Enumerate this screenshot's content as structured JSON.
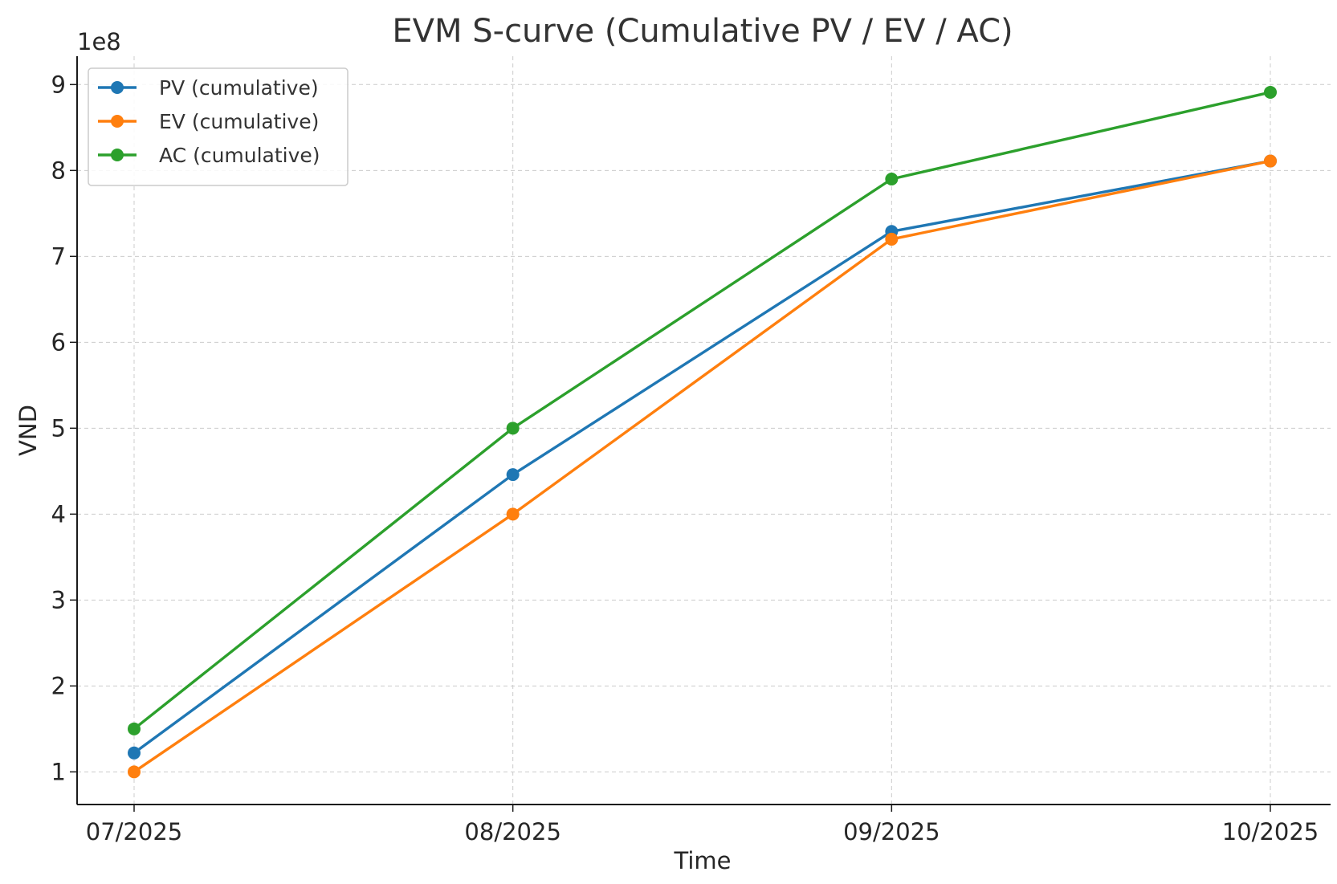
{
  "chart_data": {
    "type": "line",
    "title": "EVM S-curve (Cumulative PV / EV / AC)",
    "xlabel": "Time",
    "ylabel": "VND",
    "y_offset_label": "1e8",
    "categories": [
      "07/2025",
      "08/2025",
      "09/2025",
      "10/2025"
    ],
    "y_ticks": [
      1,
      2,
      3,
      4,
      5,
      6,
      7,
      8,
      9
    ],
    "ylim": [
      0.62,
      9.33
    ],
    "grid": true,
    "legend_position": "top-left",
    "series": [
      {
        "name": "PV (cumulative)",
        "color": "#1f77b4",
        "values": [
          1.22,
          4.46,
          7.29,
          8.11
        ]
      },
      {
        "name": "EV (cumulative)",
        "color": "#ff7f0e",
        "values": [
          1.0,
          4.0,
          7.2,
          8.11
        ]
      },
      {
        "name": "AC (cumulative)",
        "color": "#2ca02c",
        "values": [
          1.5,
          5.0,
          7.9,
          8.91
        ]
      }
    ]
  }
}
